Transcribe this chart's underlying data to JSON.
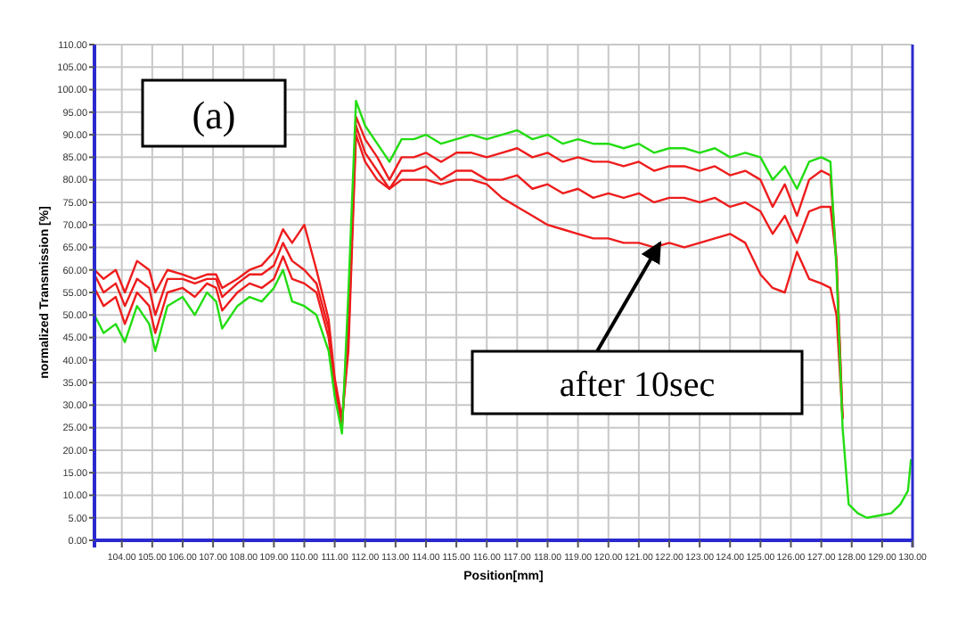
{
  "chart_data": {
    "type": "line",
    "xlabel": "Position[mm]",
    "ylabel": "normalized Transmission [%]",
    "x": [
      103.1,
      103.4,
      103.8,
      104.1,
      104.5,
      104.9,
      105.1,
      105.5,
      106.0,
      106.4,
      106.8,
      107.1,
      107.3,
      107.8,
      108.2,
      108.6,
      109.0,
      109.3,
      109.6,
      110.0,
      110.4,
      110.8,
      111.0,
      111.24,
      111.45,
      111.7,
      112.0,
      112.4,
      112.8,
      113.2,
      113.6,
      114.0,
      114.5,
      115.0,
      115.5,
      116.0,
      116.5,
      117.0,
      117.5,
      118.0,
      118.5,
      119.0,
      119.5,
      120.0,
      120.5,
      121.0,
      121.5,
      122.0,
      122.5,
      123.0,
      123.5,
      124.0,
      124.5,
      125.0,
      125.4,
      125.8,
      126.2,
      126.6,
      127.0,
      127.3,
      127.5,
      127.7,
      127.9,
      128.2,
      128.5,
      128.9,
      129.3,
      129.6,
      129.85,
      129.95
    ],
    "series": [
      {
        "color": "#22dd11",
        "values": [
          50,
          46,
          48,
          44,
          52,
          48,
          42,
          52,
          54,
          50,
          55,
          53,
          47,
          52,
          54,
          53,
          56,
          60,
          53,
          52,
          50,
          42,
          32,
          23.7,
          55,
          97.5,
          92,
          88,
          84,
          89,
          89,
          90,
          88,
          89,
          90,
          89,
          90,
          91,
          89,
          90,
          88,
          89,
          88,
          88,
          87,
          88,
          86,
          87,
          87,
          86,
          87,
          85,
          86,
          85,
          80,
          83,
          78,
          84,
          85,
          84,
          60,
          25,
          8,
          6,
          5,
          5.5,
          6,
          8,
          11,
          18
        ]
      },
      {
        "color": "#ee1c1c",
        "values": [
          56,
          52,
          54,
          48,
          55,
          52,
          46,
          55,
          56,
          54,
          57,
          56,
          51,
          55,
          57,
          56,
          58,
          63,
          58,
          57,
          55,
          45,
          34,
          25,
          50,
          94,
          89,
          85,
          80,
          85,
          85,
          86,
          84,
          86,
          86,
          85,
          86,
          87,
          85,
          86,
          84,
          85,
          84,
          84,
          83,
          84,
          82,
          83,
          83,
          82,
          83,
          81,
          82,
          80,
          74,
          79,
          72,
          80,
          82,
          81,
          62,
          27,
          null,
          null,
          null,
          null,
          null,
          null,
          null,
          null
        ]
      },
      {
        "color": "#ee1c1c",
        "values": [
          59,
          55,
          57,
          52,
          58,
          56,
          50,
          58,
          58,
          57,
          58,
          58,
          54,
          57,
          59,
          59,
          61,
          66,
          62,
          60,
          57,
          47,
          35,
          26,
          45,
          92,
          86,
          82,
          78,
          82,
          82,
          83,
          80,
          82,
          82,
          80,
          80,
          81,
          78,
          79,
          77,
          78,
          76,
          77,
          76,
          77,
          75,
          76,
          76,
          75,
          76,
          74,
          75,
          73,
          68,
          72,
          66,
          73,
          74,
          74,
          62,
          27,
          null,
          null,
          null,
          null,
          null,
          null,
          null,
          null
        ]
      },
      {
        "color": "#ee1c1c",
        "values": [
          60,
          58,
          60,
          55,
          62,
          60,
          55,
          60,
          59,
          58,
          59,
          59,
          56,
          58,
          60,
          61,
          64,
          69,
          66,
          70,
          60,
          49,
          36,
          27,
          42,
          90,
          84,
          80,
          78,
          80,
          80,
          80,
          79,
          80,
          80,
          79,
          76,
          74,
          72,
          70,
          69,
          68,
          67,
          67,
          66,
          66,
          65,
          66,
          65,
          66,
          67,
          68,
          66,
          59,
          56,
          55,
          64,
          58,
          57,
          56,
          50,
          27,
          null,
          null,
          null,
          null,
          null,
          null,
          null,
          null
        ]
      }
    ],
    "xlim": [
      103.1,
      130.0
    ],
    "xticks": [
      {
        "value": 104,
        "label": "104.00"
      },
      {
        "value": 105,
        "label": "105.00"
      },
      {
        "value": 106,
        "label": "106.00"
      },
      {
        "value": 107,
        "label": "107.00"
      },
      {
        "value": 108,
        "label": "108.00"
      },
      {
        "value": 109,
        "label": "109.00"
      },
      {
        "value": 110,
        "label": "110.00"
      },
      {
        "value": 111,
        "label": "111.00"
      },
      {
        "value": 112,
        "label": "112.00"
      },
      {
        "value": 113,
        "label": "113.00"
      },
      {
        "value": 114,
        "label": "114.00"
      },
      {
        "value": 115,
        "label": "115.00"
      },
      {
        "value": 116,
        "label": "116.00"
      },
      {
        "value": 117,
        "label": "117.00"
      },
      {
        "value": 118,
        "label": "118.00"
      },
      {
        "value": 119,
        "label": "119.00"
      },
      {
        "value": 120,
        "label": "120.00"
      },
      {
        "value": 121,
        "label": "121.00"
      },
      {
        "value": 122,
        "label": "122.00"
      },
      {
        "value": 123,
        "label": "123.00"
      },
      {
        "value": 124,
        "label": "124.00"
      },
      {
        "value": 125,
        "label": "125.00"
      },
      {
        "value": 126,
        "label": "126.00"
      },
      {
        "value": 127,
        "label": "127.00"
      },
      {
        "value": 128,
        "label": "128.00"
      },
      {
        "value": 129,
        "label": "129.00"
      },
      {
        "value": 130,
        "label": "130.00"
      }
    ],
    "ylim": [
      0,
      110
    ],
    "yticks": [
      {
        "value": 0,
        "label": "0.00"
      },
      {
        "value": 5,
        "label": "5.00"
      },
      {
        "value": 10,
        "label": "10.00"
      },
      {
        "value": 15,
        "label": "15.00"
      },
      {
        "value": 20,
        "label": "20.00"
      },
      {
        "value": 25,
        "label": "25.00"
      },
      {
        "value": 30,
        "label": "30.00"
      },
      {
        "value": 35,
        "label": "35.00"
      },
      {
        "value": 40,
        "label": "40.00"
      },
      {
        "value": 45,
        "label": "45.00"
      },
      {
        "value": 50,
        "label": "50.00"
      },
      {
        "value": 55,
        "label": "55.00"
      },
      {
        "value": 60,
        "label": "60.00"
      },
      {
        "value": 65,
        "label": "65.00"
      },
      {
        "value": 70,
        "label": "70.00"
      },
      {
        "value": 75,
        "label": "75.00"
      },
      {
        "value": 80,
        "label": "80.00"
      },
      {
        "value": 85,
        "label": "85.00"
      },
      {
        "value": 90,
        "label": "90.00"
      },
      {
        "value": 95,
        "label": "95.00"
      },
      {
        "value": 100,
        "label": "100.00"
      },
      {
        "value": 105,
        "label": "105.00"
      },
      {
        "value": 110,
        "label": "110.00"
      }
    ],
    "grid": true,
    "annotations": [
      "(a)",
      {
        "text": "after 10sec",
        "x": 121.7,
        "y": 66
      }
    ]
  }
}
